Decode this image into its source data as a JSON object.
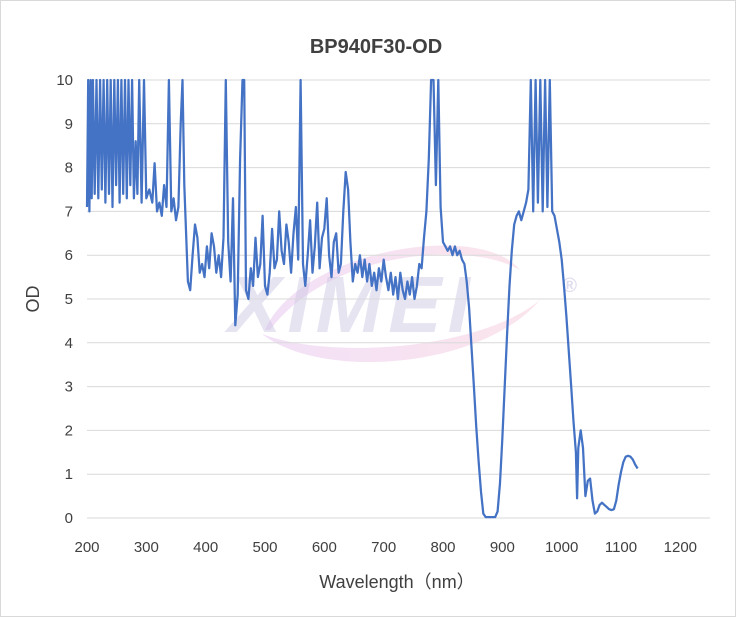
{
  "chart_data": {
    "type": "line",
    "title": "BP940F30-OD",
    "xlabel": "Wavelength（nm）",
    "ylabel": "OD",
    "xlim": [
      200,
      1250
    ],
    "ylim": [
      0,
      10
    ],
    "xticks": [
      200,
      300,
      400,
      500,
      600,
      700,
      800,
      900,
      1000,
      1100,
      1200
    ],
    "yticks": [
      0,
      1,
      2,
      3,
      4,
      5,
      6,
      7,
      8,
      9,
      10
    ],
    "grid": "horizontal",
    "legend": "none",
    "watermark": "XIMEI",
    "watermark_mark": "®",
    "colors": {
      "line": "#4472c4",
      "grid": "#d9d9d9",
      "text": "#404040"
    },
    "series": [
      {
        "points": [
          [
            200,
            7.1
          ],
          [
            202,
            10
          ],
          [
            204,
            7.0
          ],
          [
            206,
            10
          ],
          [
            208,
            7.3
          ],
          [
            210,
            10
          ],
          [
            213,
            7.4
          ],
          [
            216,
            10
          ],
          [
            219,
            7.3
          ],
          [
            222,
            10
          ],
          [
            225,
            7.5
          ],
          [
            228,
            10
          ],
          [
            231,
            7.2
          ],
          [
            234,
            10
          ],
          [
            237,
            7.4
          ],
          [
            240,
            10
          ],
          [
            243,
            7.1
          ],
          [
            246,
            10
          ],
          [
            249,
            7.6
          ],
          [
            252,
            10
          ],
          [
            255,
            7.2
          ],
          [
            258,
            10
          ],
          [
            261,
            7.4
          ],
          [
            264,
            10
          ],
          [
            267,
            7.3
          ],
          [
            270,
            10
          ],
          [
            273,
            7.6
          ],
          [
            276,
            10
          ],
          [
            279,
            7.3
          ],
          [
            282,
            8.6
          ],
          [
            285,
            7.4
          ],
          [
            288,
            10
          ],
          [
            292,
            7.2
          ],
          [
            296,
            10
          ],
          [
            300,
            7.3
          ],
          [
            305,
            7.5
          ],
          [
            310,
            7.2
          ],
          [
            314,
            8.1
          ],
          [
            318,
            7.0
          ],
          [
            322,
            7.2
          ],
          [
            326,
            6.9
          ],
          [
            330,
            7.6
          ],
          [
            334,
            7.1
          ],
          [
            338,
            10
          ],
          [
            342,
            7.0
          ],
          [
            346,
            7.3
          ],
          [
            350,
            6.8
          ],
          [
            354,
            7.1
          ],
          [
            358,
            9.0
          ],
          [
            361,
            10
          ],
          [
            364,
            7.6
          ],
          [
            367,
            6.5
          ],
          [
            370,
            5.4
          ],
          [
            374,
            5.2
          ],
          [
            378,
            6.0
          ],
          [
            382,
            6.7
          ],
          [
            386,
            6.4
          ],
          [
            390,
            5.6
          ],
          [
            394,
            5.8
          ],
          [
            398,
            5.5
          ],
          [
            402,
            6.2
          ],
          [
            406,
            5.7
          ],
          [
            410,
            6.5
          ],
          [
            414,
            6.2
          ],
          [
            418,
            5.6
          ],
          [
            422,
            6.0
          ],
          [
            426,
            5.5
          ],
          [
            430,
            6.4
          ],
          [
            434,
            10
          ],
          [
            438,
            6.3
          ],
          [
            442,
            5.4
          ],
          [
            446,
            7.3
          ],
          [
            450,
            4.4
          ],
          [
            454,
            5.1
          ],
          [
            458,
            8.2
          ],
          [
            462,
            10
          ],
          [
            465,
            10
          ],
          [
            468,
            5.2
          ],
          [
            472,
            5.0
          ],
          [
            476,
            5.7
          ],
          [
            480,
            5.3
          ],
          [
            484,
            6.4
          ],
          [
            488,
            5.5
          ],
          [
            492,
            5.8
          ],
          [
            496,
            6.9
          ],
          [
            500,
            5.3
          ],
          [
            504,
            5.1
          ],
          [
            508,
            5.6
          ],
          [
            512,
            6.6
          ],
          [
            516,
            5.7
          ],
          [
            520,
            5.9
          ],
          [
            524,
            7.0
          ],
          [
            528,
            6.1
          ],
          [
            532,
            5.8
          ],
          [
            536,
            6.7
          ],
          [
            540,
            6.3
          ],
          [
            544,
            5.6
          ],
          [
            548,
            6.5
          ],
          [
            552,
            7.1
          ],
          [
            556,
            5.9
          ],
          [
            560,
            10
          ],
          [
            564,
            5.8
          ],
          [
            568,
            5.3
          ],
          [
            572,
            6.0
          ],
          [
            576,
            6.8
          ],
          [
            580,
            5.6
          ],
          [
            584,
            6.2
          ],
          [
            588,
            7.2
          ],
          [
            592,
            5.7
          ],
          [
            596,
            6.4
          ],
          [
            600,
            6.6
          ],
          [
            604,
            7.3
          ],
          [
            608,
            6.0
          ],
          [
            612,
            5.5
          ],
          [
            616,
            6.3
          ],
          [
            620,
            6.5
          ],
          [
            624,
            5.6
          ],
          [
            628,
            5.8
          ],
          [
            632,
            7.0
          ],
          [
            636,
            7.9
          ],
          [
            640,
            7.5
          ],
          [
            644,
            6.3
          ],
          [
            648,
            5.4
          ],
          [
            652,
            5.8
          ],
          [
            656,
            5.6
          ],
          [
            660,
            6.0
          ],
          [
            664,
            5.5
          ],
          [
            668,
            5.9
          ],
          [
            672,
            5.4
          ],
          [
            676,
            5.8
          ],
          [
            680,
            5.3
          ],
          [
            684,
            5.6
          ],
          [
            688,
            5.2
          ],
          [
            692,
            5.7
          ],
          [
            696,
            5.4
          ],
          [
            700,
            5.9
          ],
          [
            704,
            5.5
          ],
          [
            708,
            5.2
          ],
          [
            712,
            5.6
          ],
          [
            716,
            5.1
          ],
          [
            720,
            5.5
          ],
          [
            724,
            5.0
          ],
          [
            728,
            5.6
          ],
          [
            732,
            5.2
          ],
          [
            736,
            5.0
          ],
          [
            740,
            5.4
          ],
          [
            744,
            5.1
          ],
          [
            748,
            5.5
          ],
          [
            752,
            5.0
          ],
          [
            756,
            5.3
          ],
          [
            760,
            5.8
          ],
          [
            764,
            5.7
          ],
          [
            768,
            6.4
          ],
          [
            772,
            7.0
          ],
          [
            776,
            8.2
          ],
          [
            780,
            10
          ],
          [
            784,
            10
          ],
          [
            788,
            7.6
          ],
          [
            792,
            10
          ],
          [
            796,
            7.1
          ],
          [
            800,
            6.3
          ],
          [
            804,
            6.2
          ],
          [
            808,
            6.1
          ],
          [
            812,
            6.2
          ],
          [
            816,
            6.0
          ],
          [
            820,
            6.2
          ],
          [
            824,
            6.0
          ],
          [
            828,
            6.1
          ],
          [
            832,
            5.9
          ],
          [
            836,
            5.8
          ],
          [
            840,
            5.4
          ],
          [
            844,
            4.8
          ],
          [
            848,
            3.9
          ],
          [
            852,
            3.0
          ],
          [
            856,
            2.1
          ],
          [
            860,
            1.3
          ],
          [
            864,
            0.6
          ],
          [
            868,
            0.1
          ],
          [
            872,
            0.02
          ],
          [
            880,
            0.02
          ],
          [
            888,
            0.02
          ],
          [
            892,
            0.15
          ],
          [
            896,
            0.8
          ],
          [
            900,
            1.8
          ],
          [
            904,
            3.0
          ],
          [
            908,
            4.2
          ],
          [
            912,
            5.3
          ],
          [
            916,
            6.1
          ],
          [
            920,
            6.7
          ],
          [
            924,
            6.9
          ],
          [
            928,
            7.0
          ],
          [
            932,
            6.8
          ],
          [
            936,
            7.0
          ],
          [
            940,
            7.2
          ],
          [
            944,
            7.5
          ],
          [
            948,
            10
          ],
          [
            952,
            7.0
          ],
          [
            956,
            10
          ],
          [
            960,
            7.2
          ],
          [
            964,
            10
          ],
          [
            968,
            7.0
          ],
          [
            972,
            10
          ],
          [
            976,
            7.1
          ],
          [
            980,
            10
          ],
          [
            984,
            7.0
          ],
          [
            988,
            6.9
          ],
          [
            992,
            6.6
          ],
          [
            996,
            6.3
          ],
          [
            1000,
            5.9
          ],
          [
            1004,
            5.3
          ],
          [
            1008,
            4.6
          ],
          [
            1012,
            3.8
          ],
          [
            1016,
            3.0
          ],
          [
            1020,
            2.2
          ],
          [
            1024,
            1.5
          ],
          [
            1026,
            0.45
          ],
          [
            1028,
            1.6
          ],
          [
            1032,
            2.0
          ],
          [
            1036,
            1.6
          ],
          [
            1040,
            0.5
          ],
          [
            1044,
            0.85
          ],
          [
            1048,
            0.9
          ],
          [
            1052,
            0.4
          ],
          [
            1056,
            0.1
          ],
          [
            1060,
            0.15
          ],
          [
            1064,
            0.3
          ],
          [
            1068,
            0.35
          ],
          [
            1072,
            0.3
          ],
          [
            1076,
            0.25
          ],
          [
            1080,
            0.2
          ],
          [
            1084,
            0.18
          ],
          [
            1088,
            0.2
          ],
          [
            1092,
            0.4
          ],
          [
            1096,
            0.75
          ],
          [
            1100,
            1.05
          ],
          [
            1104,
            1.28
          ],
          [
            1108,
            1.4
          ],
          [
            1112,
            1.42
          ],
          [
            1116,
            1.4
          ],
          [
            1120,
            1.33
          ],
          [
            1124,
            1.22
          ],
          [
            1128,
            1.13
          ]
        ]
      }
    ]
  }
}
